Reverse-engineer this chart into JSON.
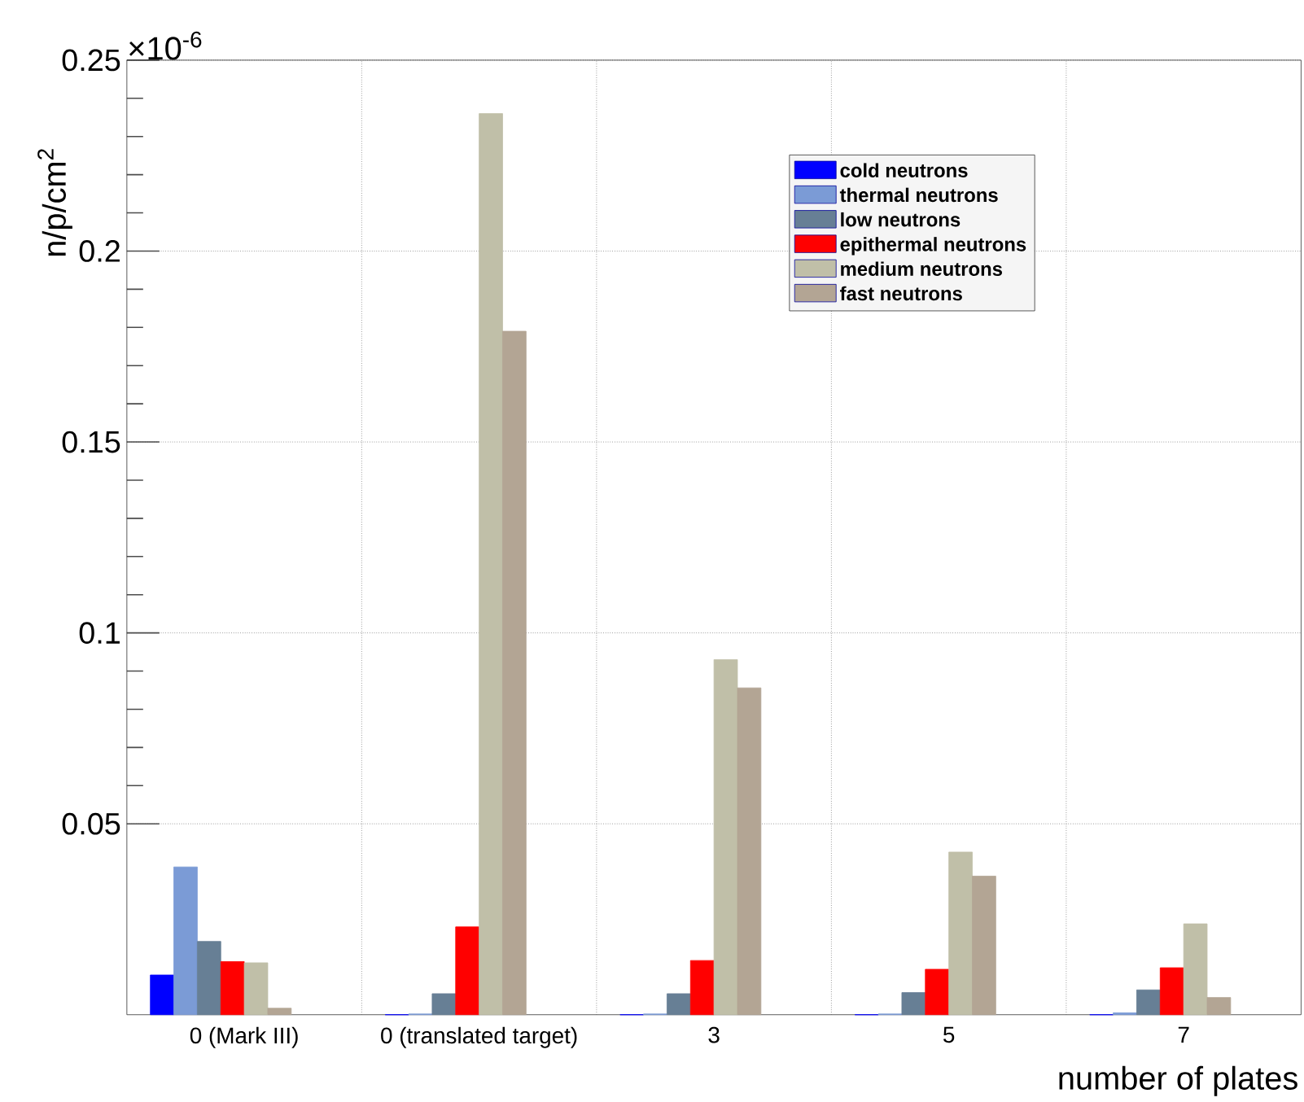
{
  "chart_data": {
    "type": "bar",
    "xlabel": "number of plates",
    "ylabel": "n/p/cm$^{2}$",
    "annotations": [
      "×10$^{-6}$"
    ],
    "categories": [
      "0 (Mark III)",
      "0 (translated target)",
      "3",
      "5",
      "7"
    ],
    "series": [
      {
        "name": "cold neutrons",
        "color": "#0000ff",
        "values": [
          0.0104,
          0,
          0,
          0,
          0
        ]
      },
      {
        "name": "thermal neutrons",
        "color": "#7b9bd6",
        "values": [
          0.0387,
          0.0002,
          0.0002,
          0.0002,
          0.0005
        ]
      },
      {
        "name": "low neutrons",
        "color": "#677f95",
        "values": [
          0.0192,
          0.0055,
          0.0055,
          0.0058,
          0.0065
        ]
      },
      {
        "name": "epithermal neutrons",
        "color": "#ff0000",
        "values": [
          0.0139,
          0.023,
          0.0142,
          0.0119,
          0.0123
        ]
      },
      {
        "name": "medium neutrons",
        "color": "#c0bfa8",
        "values": [
          0.0136,
          0.236,
          0.093,
          0.0426,
          0.0238
        ]
      },
      {
        "name": "fast neutrons",
        "color": "#b3a594",
        "values": [
          0.0017,
          0.179,
          0.0856,
          0.0363,
          0.0045
        ]
      }
    ],
    "ylim": [
      0,
      0.25
    ],
    "yticks": [
      0.05,
      0.1,
      0.15,
      0.2,
      0.25
    ],
    "grid": true,
    "legend": "top right"
  }
}
